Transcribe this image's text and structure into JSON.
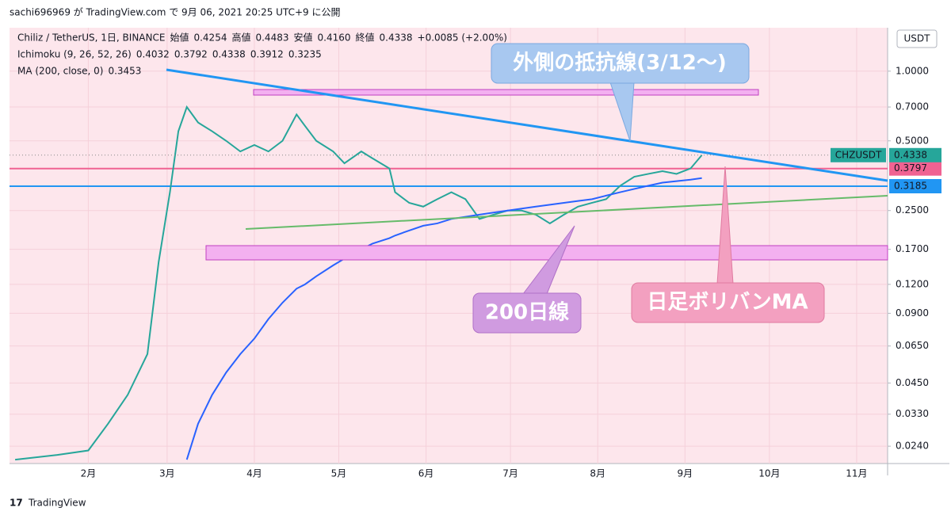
{
  "header": {
    "text": "sachi696969 が TradingView.com で 9月 06, 2021 20:25 UTC+9 に公開"
  },
  "footer": {
    "text": "TradingView"
  },
  "chart_data": {
    "type": "line",
    "y_unit": "USDT",
    "log_scale": true,
    "grid": true,
    "legend_rows": [
      [
        {
          "text": "Chiliz / TetherUS, 1日, BINANCE",
          "color": "#131722"
        },
        {
          "text": "始値",
          "color": "#131722"
        },
        {
          "text": "0.4254",
          "color": "#26a69a"
        },
        {
          "text": "高値",
          "color": "#131722"
        },
        {
          "text": "0.4483",
          "color": "#26a69a"
        },
        {
          "text": "安値",
          "color": "#131722"
        },
        {
          "text": "0.4160",
          "color": "#26a69a"
        },
        {
          "text": "終値",
          "color": "#131722"
        },
        {
          "text": "0.4338",
          "color": "#26a69a"
        },
        {
          "text": "+0.0085 (+2.00%)",
          "color": "#26a69a"
        }
      ],
      [
        {
          "text": "Ichimoku (9, 26, 52, 26)",
          "color": "#131722"
        },
        {
          "text": "0.4032",
          "color": "#2962ff"
        },
        {
          "text": "0.3792",
          "color": "#8b1a1a"
        },
        {
          "text": "0.4338",
          "color": "#43a047"
        },
        {
          "text": "0.3912",
          "color": "#558b2f"
        },
        {
          "text": "0.3235",
          "color": "#e53935"
        }
      ]
    ],
    "annotations": [
      "外側の抵抗線(3/12〜)",
      "200日線",
      "日足ボリバンMA"
    ],
    "x": [
      5,
      20,
      31,
      38,
      45,
      52,
      56,
      60,
      63,
      66,
      70,
      75,
      80,
      85,
      90,
      95,
      100,
      105,
      108,
      112,
      118,
      122,
      128,
      132,
      138,
      140,
      145,
      150,
      155,
      160,
      165,
      170,
      175,
      180,
      185,
      190,
      195,
      200,
      205,
      210,
      215,
      220,
      225,
      230,
      235,
      240,
      245,
      249
    ],
    "series": [
      {
        "name": "CHZUSDT",
        "color": "#26a69a",
        "values": [
          0.021,
          0.022,
          0.023,
          0.03,
          0.04,
          0.06,
          0.15,
          0.3,
          0.55,
          0.7,
          0.6,
          0.55,
          0.5,
          0.45,
          0.48,
          0.45,
          0.5,
          0.65,
          0.58,
          0.5,
          0.45,
          0.4,
          0.45,
          0.42,
          0.38,
          0.3,
          0.27,
          0.26,
          0.28,
          0.3,
          0.28,
          0.23,
          0.24,
          0.25,
          0.25,
          0.24,
          0.22,
          0.24,
          0.26,
          0.27,
          0.28,
          0.32,
          0.35,
          0.36,
          0.37,
          0.36,
          0.38,
          0.4338
        ]
      },
      {
        "name": "MA (200, close, 0)",
        "color": "#2962ff",
        "values": [
          null,
          null,
          null,
          null,
          null,
          null,
          null,
          null,
          null,
          0.021,
          0.03,
          0.04,
          0.05,
          0.06,
          0.07,
          0.085,
          0.1,
          0.115,
          0.12,
          0.13,
          0.145,
          0.155,
          0.17,
          0.18,
          0.19,
          0.195,
          0.205,
          0.215,
          0.22,
          0.23,
          0.235,
          0.24,
          0.245,
          0.25,
          0.255,
          0.26,
          0.265,
          0.27,
          0.275,
          0.28,
          0.29,
          0.3,
          0.31,
          0.32,
          0.33,
          0.335,
          0.34,
          0.3453
        ]
      }
    ],
    "hlines": [
      {
        "value": 0.3797,
        "color": "#f06292"
      },
      {
        "value": 0.3185,
        "color": "#2196f3"
      }
    ],
    "xlim": [
      3,
      315
    ],
    "xticks": [
      {
        "value": 31,
        "label": "2月"
      },
      {
        "value": 59,
        "label": "3月"
      },
      {
        "value": 90,
        "label": "4月"
      },
      {
        "value": 120,
        "label": "5月"
      },
      {
        "value": 151,
        "label": "6月"
      },
      {
        "value": 181,
        "label": "7月"
      },
      {
        "value": 212,
        "label": "8月"
      },
      {
        "value": 243,
        "label": "9月"
      },
      {
        "value": 273,
        "label": "10月"
      },
      {
        "value": 304,
        "label": "11月"
      }
    ],
    "ylim": [
      0.0202,
      1.54
    ],
    "yticks": [
      {
        "value": 1,
        "label": "1.0000"
      },
      {
        "value": 0.7,
        "label": "0.7000"
      },
      {
        "value": 0.5,
        "label": "0.5000"
      },
      {
        "value": 0.25,
        "label": "0.2500"
      },
      {
        "value": 0.17,
        "label": "0.1700"
      },
      {
        "value": 0.12,
        "label": "0.1200"
      },
      {
        "value": 0.09,
        "label": "0.0900"
      },
      {
        "value": 0.065,
        "label": "0.0650"
      },
      {
        "value": 0.045,
        "label": "0.0450"
      },
      {
        "value": 0.033,
        "label": "0.0330"
      },
      {
        "value": 0.024,
        "label": "0.0240"
      }
    ]
  }
}
